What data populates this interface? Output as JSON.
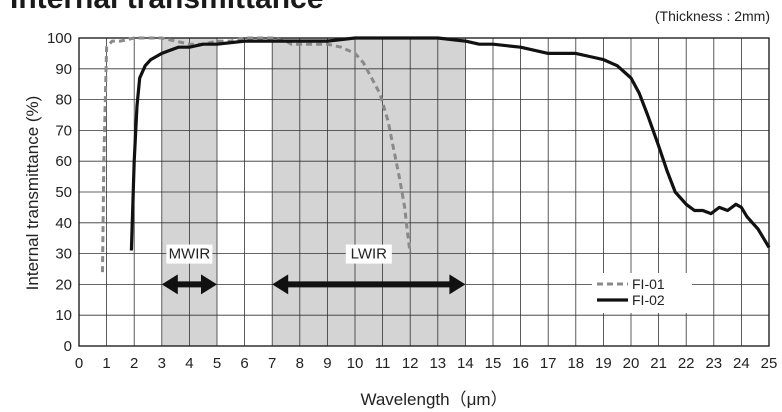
{
  "chart_data": {
    "type": "line",
    "title": "Internal transmittance",
    "note": "(Thickness : 2mm)",
    "xlabel": "Wavelength（μm）",
    "ylabel": "Internal transmittance (%)",
    "xlim": [
      0,
      25
    ],
    "ylim": [
      0,
      100
    ],
    "x_ticks": [
      "0",
      "1",
      "2",
      "3",
      "4",
      "5",
      "6",
      "7",
      "8",
      "9",
      "10",
      "11",
      "12",
      "13",
      "14",
      "15",
      "16",
      "17",
      "18",
      "19",
      "20",
      "21",
      "22",
      "23",
      "24",
      "25"
    ],
    "y_ticks": [
      "0",
      "10",
      "20",
      "30",
      "40",
      "50",
      "60",
      "70",
      "80",
      "90",
      "100"
    ],
    "grid": true,
    "legend_position": "bottom-right",
    "bands": [
      {
        "label": "MWIR",
        "x_start": 3,
        "x_end": 5,
        "color": "#d4d4d4"
      },
      {
        "label": "LWIR",
        "x_start": 7,
        "x_end": 14,
        "color": "#d4d4d4"
      }
    ],
    "series": [
      {
        "name": "FI-01",
        "style": "dashed",
        "color": "#8a8a8a",
        "x": [
          0.85,
          0.9,
          1.0,
          1.2,
          1.5,
          2.0,
          2.5,
          3.0,
          3.5,
          4.0,
          4.5,
          5.0,
          5.5,
          6.0,
          6.5,
          7.0,
          7.5,
          7.7,
          7.8,
          8.0,
          8.5,
          9.0,
          9.5,
          10.0,
          10.3,
          10.6,
          10.9,
          11.2,
          11.4,
          11.6,
          11.8,
          11.9,
          12.0
        ],
        "y": [
          24,
          60,
          97,
          99,
          99,
          100,
          100,
          100,
          99,
          98,
          98,
          99,
          99,
          100,
          100,
          100,
          99,
          98,
          98,
          98,
          98,
          98,
          97,
          95,
          92,
          87,
          82,
          73,
          64,
          55,
          45,
          37,
          30
        ]
      },
      {
        "name": "FI-02",
        "style": "solid",
        "color": "#111111",
        "x": [
          1.9,
          2.0,
          2.1,
          2.2,
          2.4,
          2.6,
          2.8,
          3.0,
          3.3,
          3.6,
          4.0,
          4.5,
          5.0,
          6.0,
          7.0,
          8.0,
          9.0,
          10.0,
          11.0,
          12.0,
          13.0,
          14.0,
          14.5,
          15.0,
          16.0,
          16.5,
          17.0,
          18.0,
          18.5,
          19.0,
          19.5,
          20.0,
          20.3,
          20.6,
          21.0,
          21.3,
          21.6,
          22.0,
          22.3,
          22.6,
          22.9,
          23.2,
          23.5,
          23.8,
          24.0,
          24.2,
          24.4,
          24.6,
          24.8,
          25.0
        ],
        "y": [
          31,
          60,
          78,
          87,
          91,
          93,
          94,
          95,
          96,
          97,
          97,
          98,
          98,
          99,
          99,
          99,
          99,
          100,
          100,
          100,
          100,
          99,
          98,
          98,
          97,
          96,
          95,
          95,
          94,
          93,
          91,
          87,
          82,
          75,
          65,
          57,
          50,
          46,
          44,
          44,
          43,
          45,
          44,
          46,
          45,
          42,
          40,
          38,
          35,
          32
        ]
      }
    ]
  }
}
